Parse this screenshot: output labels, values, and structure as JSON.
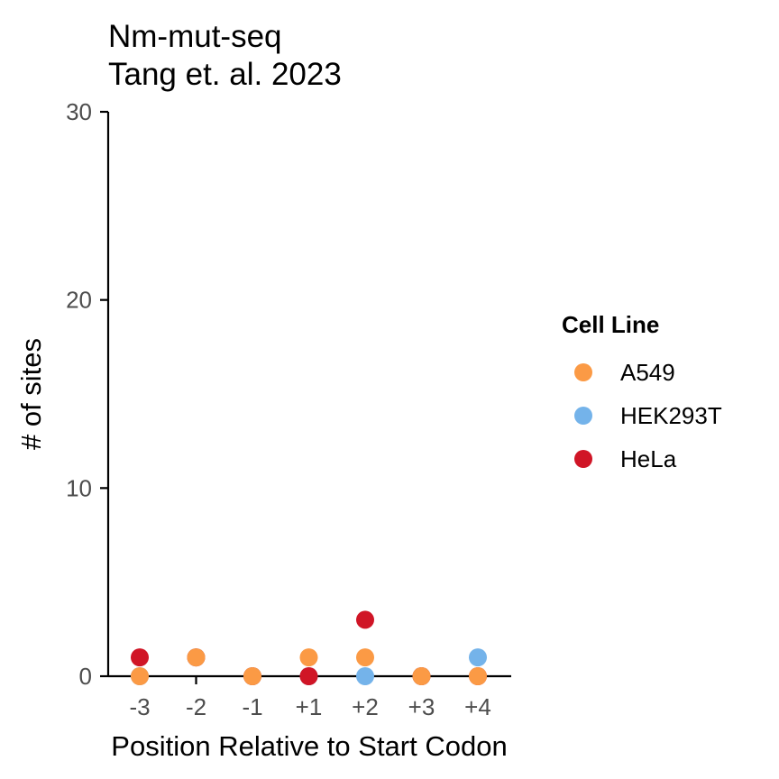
{
  "chart_data": {
    "type": "scatter",
    "title": "Nm-mut-seq",
    "subtitle": "Tang et. al. 2023",
    "xlabel": "Position Relative to Start Codon",
    "ylabel": "# of sites",
    "categories": [
      "-3",
      "-2",
      "-1",
      "+1",
      "+2",
      "+3",
      "+4"
    ],
    "ylim": [
      0,
      30
    ],
    "yticks": [
      "0",
      "10",
      "20",
      "30"
    ],
    "grid": false,
    "legend": {
      "title": "Cell Line",
      "position": "right"
    },
    "series": [
      {
        "name": "HEK293T",
        "color": "#74b3ea",
        "values": [
          0,
          1,
          0,
          0,
          0,
          0,
          1
        ]
      },
      {
        "name": "HeLa",
        "color": "#d01526",
        "values": [
          1,
          1,
          0,
          0,
          3,
          0,
          0
        ]
      },
      {
        "name": "A549",
        "color": "#fb9a45",
        "values": [
          0,
          1,
          0,
          1,
          1,
          0,
          0
        ]
      }
    ],
    "legend_order": [
      "A549",
      "HEK293T",
      "HeLa"
    ]
  }
}
